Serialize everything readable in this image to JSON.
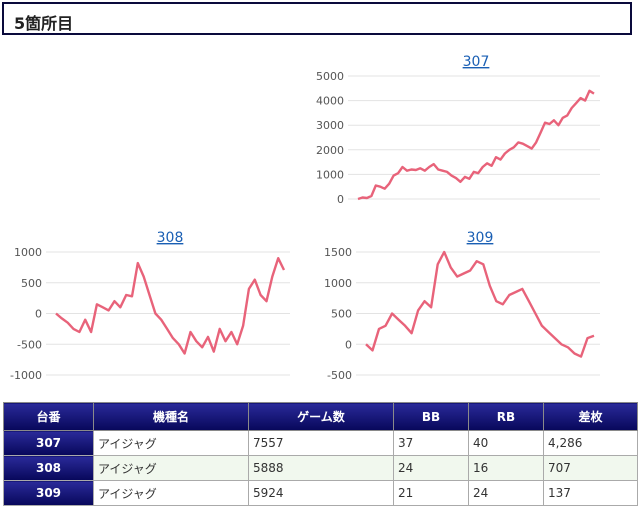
{
  "header": {
    "title": "5箇所目"
  },
  "chart_data": [
    {
      "type": "line",
      "title": "307",
      "ylim": [
        0,
        5000
      ],
      "yticks": [
        "5000",
        "4000",
        "3000",
        "2000",
        "1000",
        "0"
      ],
      "color": "#e8637a",
      "grid": true,
      "values": [
        0,
        60,
        40,
        120,
        550,
        500,
        420,
        620,
        950,
        1050,
        1300,
        1150,
        1200,
        1180,
        1250,
        1150,
        1300,
        1420,
        1200,
        1150,
        1100,
        950,
        850,
        700,
        900,
        820,
        1100,
        1050,
        1300,
        1450,
        1350,
        1700,
        1600,
        1850,
        2000,
        2100,
        2300,
        2250,
        2150,
        2050,
        2300,
        2700,
        3100,
        3050,
        3200,
        3000,
        3300,
        3400,
        3700,
        3900,
        4100,
        4000,
        4400,
        4286
      ]
    },
    {
      "type": "line",
      "title": "308",
      "ylim": [
        -1000,
        1000
      ],
      "yticks": [
        "1000",
        "500",
        "0",
        "-500",
        "-1000"
      ],
      "color": "#e8637a",
      "grid": true,
      "values": [
        0,
        -80,
        -150,
        -250,
        -300,
        -100,
        -300,
        150,
        100,
        50,
        200,
        100,
        300,
        280,
        820,
        600,
        300,
        0,
        -100,
        -250,
        -400,
        -500,
        -650,
        -300,
        -450,
        -550,
        -380,
        -620,
        -250,
        -450,
        -300,
        -500,
        -200,
        400,
        550,
        300,
        200,
        600,
        900,
        707
      ]
    },
    {
      "type": "line",
      "title": "309",
      "ylim": [
        -500,
        1500
      ],
      "yticks": [
        "1500",
        "1000",
        "500",
        "0",
        "-500"
      ],
      "color": "#e8637a",
      "grid": true,
      "values": [
        0,
        -100,
        250,
        300,
        500,
        400,
        300,
        180,
        550,
        700,
        600,
        1300,
        1500,
        1250,
        1100,
        1150,
        1200,
        1350,
        1300,
        950,
        700,
        650,
        800,
        850,
        900,
        700,
        500,
        300,
        200,
        100,
        0,
        -50,
        -150,
        -200,
        100,
        137
      ]
    }
  ],
  "table": {
    "headers": [
      "台番",
      "機種名",
      "ゲーム数",
      "BB",
      "RB",
      "差枚"
    ],
    "rows": [
      [
        "307",
        "アイジャグ",
        "7557",
        "37",
        "40",
        "4,286"
      ],
      [
        "308",
        "アイジャグ",
        "5888",
        "24",
        "16",
        "707"
      ],
      [
        "309",
        "アイジャグ",
        "5924",
        "21",
        "24",
        "137"
      ]
    ]
  }
}
